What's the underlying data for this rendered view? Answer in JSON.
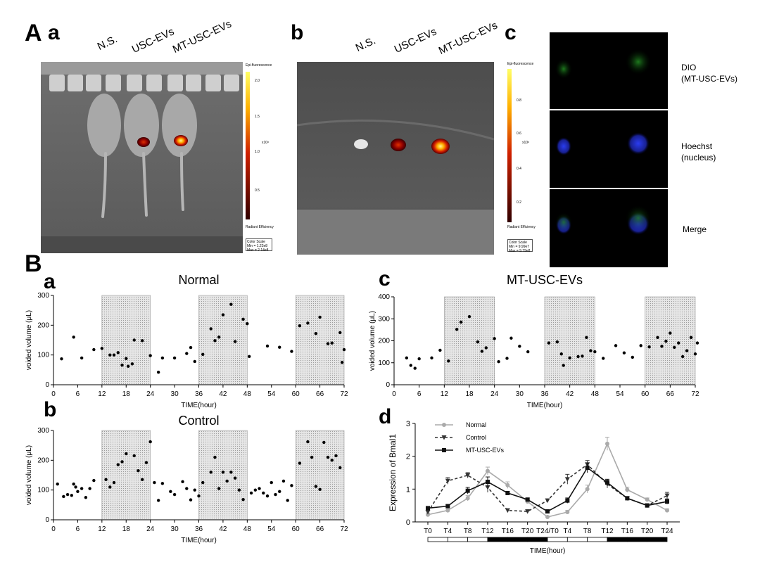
{
  "panel_labels": {
    "A": "A",
    "A_a": "a",
    "A_b": "b",
    "A_c": "c",
    "B": "B",
    "B_a": "a",
    "B_b": "b",
    "B_c": "c",
    "B_d": "d"
  },
  "imaging": {
    "group_labels": [
      "N.S.",
      "USC-EVs",
      "MT-USC-EVs"
    ],
    "colorbar_a": {
      "title": "Epi-fluorescence",
      "ticks": [
        "2.0",
        "1.5",
        "1.0",
        "0.5"
      ],
      "multiplier": "x10⁸",
      "footer": "Radiant Efficiency",
      "scale_title": "Color Scale",
      "min": "Min = 1.22e8",
      "max": "Max = 2.14e8"
    },
    "colorbar_b": {
      "title": "Epi-fluorescence",
      "ticks": [
        "0.8",
        "0.6",
        "0.4",
        "0.2"
      ],
      "multiplier": "x10⁸",
      "footer": "Radiant Efficiency",
      "scale_title": "Color Scale",
      "min": "Min = 9.99e7",
      "max": "Max = 9.79e8"
    }
  },
  "microscopy": {
    "rows": [
      {
        "line1": "DIO",
        "line2": "(MT-USC-EVs)"
      },
      {
        "line1": "Hoechst",
        "line2": "(nucleus)"
      },
      {
        "line1": "Merge",
        "line2": ""
      }
    ]
  },
  "chart_data": [
    {
      "type": "scatter",
      "title": "Normal",
      "xlabel": "TIME(hour)",
      "ylabel": "voided volume (μL)",
      "xlim": [
        0,
        72
      ],
      "ylim": [
        0,
        300
      ],
      "xticks": [
        0,
        6,
        12,
        18,
        24,
        30,
        36,
        42,
        48,
        54,
        60,
        66,
        72
      ],
      "yticks": [
        0,
        100,
        200,
        300
      ],
      "dark_periods": [
        [
          12,
          24
        ],
        [
          36,
          48
        ],
        [
          60,
          72
        ]
      ],
      "points": [
        [
          2,
          87
        ],
        [
          5,
          160
        ],
        [
          7,
          90
        ],
        [
          10,
          118
        ],
        [
          12,
          122
        ],
        [
          14,
          100
        ],
        [
          15,
          100
        ],
        [
          16,
          108
        ],
        [
          17,
          66
        ],
        [
          18,
          88
        ],
        [
          18.5,
          62
        ],
        [
          19.5,
          70
        ],
        [
          20,
          150
        ],
        [
          22,
          148
        ],
        [
          24,
          98
        ],
        [
          26,
          42
        ],
        [
          27,
          90
        ],
        [
          30,
          90
        ],
        [
          33,
          105
        ],
        [
          34,
          125
        ],
        [
          35,
          78
        ],
        [
          37,
          102
        ],
        [
          39,
          188
        ],
        [
          40,
          148
        ],
        [
          41,
          160
        ],
        [
          42,
          235
        ],
        [
          44,
          270
        ],
        [
          45,
          145
        ],
        [
          47,
          220
        ],
        [
          48,
          205
        ],
        [
          48.5,
          95
        ],
        [
          53,
          130
        ],
        [
          56,
          126
        ],
        [
          59,
          112
        ],
        [
          61,
          198
        ],
        [
          63,
          207
        ],
        [
          65,
          172
        ],
        [
          66,
          227
        ],
        [
          68,
          138
        ],
        [
          69,
          140
        ],
        [
          71,
          175
        ],
        [
          71.5,
          75
        ],
        [
          72,
          118
        ]
      ]
    },
    {
      "type": "scatter",
      "title": "Control",
      "xlabel": "TIME(hour)",
      "ylabel": "voided volume (μL)",
      "xlim": [
        0,
        72
      ],
      "ylim": [
        0,
        300
      ],
      "xticks": [
        0,
        6,
        12,
        18,
        24,
        30,
        36,
        42,
        48,
        54,
        60,
        66,
        72
      ],
      "yticks": [
        0,
        100,
        200,
        300
      ],
      "dark_periods": [
        [
          12,
          24
        ],
        [
          36,
          48
        ],
        [
          60,
          72
        ]
      ],
      "points": [
        [
          1,
          120
        ],
        [
          2.5,
          78
        ],
        [
          3.5,
          85
        ],
        [
          4.5,
          82
        ],
        [
          5,
          120
        ],
        [
          5.5,
          110
        ],
        [
          6,
          95
        ],
        [
          7,
          105
        ],
        [
          8,
          75
        ],
        [
          9,
          105
        ],
        [
          10,
          132
        ],
        [
          13,
          135
        ],
        [
          14,
          110
        ],
        [
          15,
          125
        ],
        [
          16,
          185
        ],
        [
          17,
          195
        ],
        [
          18,
          222
        ],
        [
          20,
          215
        ],
        [
          21,
          165
        ],
        [
          22,
          135
        ],
        [
          23,
          192
        ],
        [
          24,
          262
        ],
        [
          25,
          125
        ],
        [
          26,
          65
        ],
        [
          27,
          122
        ],
        [
          29,
          95
        ],
        [
          30,
          85
        ],
        [
          32,
          128
        ],
        [
          33,
          105
        ],
        [
          34,
          67
        ],
        [
          35,
          100
        ],
        [
          36,
          80
        ],
        [
          37,
          125
        ],
        [
          39,
          160
        ],
        [
          40,
          210
        ],
        [
          41,
          105
        ],
        [
          42,
          160
        ],
        [
          43,
          130
        ],
        [
          44,
          160
        ],
        [
          45,
          140
        ],
        [
          46,
          100
        ],
        [
          47,
          68
        ],
        [
          49,
          90
        ],
        [
          50,
          100
        ],
        [
          51,
          105
        ],
        [
          52,
          90
        ],
        [
          53,
          80
        ],
        [
          54,
          125
        ],
        [
          55,
          85
        ],
        [
          56,
          95
        ],
        [
          57,
          130
        ],
        [
          58,
          65
        ],
        [
          59,
          115
        ],
        [
          61,
          190
        ],
        [
          63,
          262
        ],
        [
          64,
          210
        ],
        [
          65,
          112
        ],
        [
          66,
          102
        ],
        [
          67,
          260
        ],
        [
          68,
          210
        ],
        [
          69,
          200
        ],
        [
          70,
          215
        ],
        [
          71,
          175
        ]
      ]
    },
    {
      "type": "scatter",
      "title": "MT-USC-EVs",
      "xlabel": "TIME(hour)",
      "ylabel": "voided volume (μL)",
      "xlim": [
        0,
        72
      ],
      "ylim": [
        0,
        400
      ],
      "xticks": [
        0,
        6,
        12,
        18,
        24,
        30,
        36,
        42,
        48,
        54,
        60,
        66,
        72
      ],
      "yticks": [
        0,
        100,
        200,
        300,
        400
      ],
      "dark_periods": [
        [
          12,
          24
        ],
        [
          36,
          48
        ],
        [
          60,
          72
        ]
      ],
      "points": [
        [
          3,
          122
        ],
        [
          4,
          88
        ],
        [
          5,
          75
        ],
        [
          6,
          118
        ],
        [
          9,
          122
        ],
        [
          11,
          157
        ],
        [
          13,
          108
        ],
        [
          15,
          252
        ],
        [
          16,
          285
        ],
        [
          18,
          310
        ],
        [
          20,
          195
        ],
        [
          21,
          152
        ],
        [
          22,
          168
        ],
        [
          24,
          210
        ],
        [
          25,
          105
        ],
        [
          27,
          120
        ],
        [
          28,
          212
        ],
        [
          30,
          175
        ],
        [
          32,
          150
        ],
        [
          37,
          190
        ],
        [
          39,
          195
        ],
        [
          40,
          140
        ],
        [
          40.5,
          88
        ],
        [
          42,
          122
        ],
        [
          44,
          128
        ],
        [
          45,
          130
        ],
        [
          46,
          215
        ],
        [
          47,
          155
        ],
        [
          48,
          150
        ],
        [
          50,
          120
        ],
        [
          53,
          178
        ],
        [
          55,
          145
        ],
        [
          57,
          125
        ],
        [
          59,
          178
        ],
        [
          61,
          172
        ],
        [
          63,
          215
        ],
        [
          64,
          175
        ],
        [
          65,
          198
        ],
        [
          66,
          235
        ],
        [
          67,
          170
        ],
        [
          68,
          190
        ],
        [
          69,
          128
        ],
        [
          70,
          155
        ],
        [
          71,
          215
        ],
        [
          72,
          140
        ],
        [
          72.5,
          190
        ]
      ]
    },
    {
      "type": "line",
      "ylabel": "Expression of  Bmal1",
      "xlabel": "TIME(hour)",
      "categories": [
        "T0",
        "T4",
        "T8",
        "T12",
        "T16",
        "T20",
        "T24/T0",
        "T4",
        "T8",
        "T12",
        "T16",
        "T20",
        "T24"
      ],
      "ylim": [
        0,
        3
      ],
      "yticks": [
        0,
        1,
        2,
        3
      ],
      "series": [
        {
          "name": "Normal",
          "color": "#aaaaaa",
          "dash": "solid",
          "marker": "circle",
          "values": [
            0.22,
            0.35,
            0.72,
            1.55,
            1.12,
            0.62,
            0.15,
            0.3,
            1.0,
            2.38,
            0.98,
            0.68,
            0.35
          ],
          "errors": [
            0.05,
            0.05,
            0.08,
            0.12,
            0.1,
            0.05,
            0.03,
            0.05,
            0.12,
            0.2,
            0.08,
            0.05,
            0.05
          ]
        },
        {
          "name": "Control",
          "color": "#333333",
          "dash": "dashed",
          "marker": "triangle",
          "values": [
            0.3,
            1.25,
            1.42,
            1.05,
            0.35,
            0.32,
            0.65,
            1.3,
            1.75,
            1.15,
            0.72,
            0.5,
            0.8
          ],
          "errors": [
            0.05,
            0.1,
            0.08,
            0.15,
            0.05,
            0.05,
            0.05,
            0.15,
            0.12,
            0.12,
            0.05,
            0.05,
            0.1
          ]
        },
        {
          "name": "MT-USC-EVs",
          "color": "#111111",
          "dash": "solid",
          "marker": "square",
          "values": [
            0.42,
            0.48,
            0.95,
            1.22,
            0.88,
            0.68,
            0.32,
            0.65,
            1.65,
            1.2,
            0.72,
            0.5,
            0.62
          ],
          "errors": [
            0.05,
            0.05,
            0.1,
            0.15,
            0.05,
            0.05,
            0.05,
            0.08,
            0.15,
            0.1,
            0.05,
            0.05,
            0.08
          ]
        }
      ],
      "light_dark_bar": [
        "light",
        "light",
        "light",
        "dark",
        "dark",
        "dark",
        "light",
        "light",
        "light",
        "dark",
        "dark",
        "dark"
      ]
    }
  ]
}
